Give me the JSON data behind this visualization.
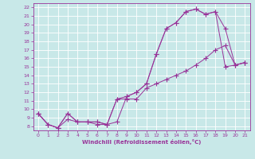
{
  "xlabel": "Windchill (Refroidissement éolien,°C)",
  "xlim": [
    -0.5,
    21.5
  ],
  "ylim": [
    7.5,
    22.5
  ],
  "xticks": [
    0,
    1,
    2,
    3,
    4,
    5,
    6,
    7,
    8,
    9,
    10,
    11,
    12,
    13,
    14,
    15,
    16,
    17,
    18,
    19,
    20,
    21
  ],
  "yticks": [
    8,
    9,
    10,
    11,
    12,
    13,
    14,
    15,
    16,
    17,
    18,
    19,
    20,
    21,
    22
  ],
  "bg_color": "#c8e8e8",
  "line_color": "#993399",
  "grid_color": "#aacccc",
  "line1_x": [
    0,
    1,
    2,
    3,
    4,
    5,
    6,
    7,
    8,
    9,
    10,
    11,
    12,
    13,
    14,
    15,
    16,
    17,
    18,
    19,
    20,
    21
  ],
  "line1_y": [
    9.5,
    8.2,
    7.8,
    8.8,
    8.5,
    8.5,
    8.2,
    8.2,
    8.5,
    11.5,
    12.0,
    13.0,
    16.5,
    19.5,
    20.2,
    21.5,
    21.8,
    21.2,
    21.5,
    19.5,
    15.2,
    15.5
  ],
  "line2_x": [
    0,
    1,
    2,
    3,
    4,
    5,
    6,
    7,
    8,
    9,
    10,
    11,
    12,
    13,
    14,
    15,
    16,
    17,
    18,
    19,
    20,
    21
  ],
  "line2_y": [
    9.5,
    8.2,
    7.8,
    9.5,
    8.5,
    8.5,
    8.5,
    8.2,
    11.2,
    11.2,
    11.2,
    12.5,
    13.0,
    13.5,
    14.0,
    14.5,
    15.2,
    16.0,
    17.0,
    17.5,
    15.2,
    15.5
  ],
  "line3_x": [
    0,
    1,
    2,
    3,
    4,
    5,
    6,
    7,
    8,
    9,
    10,
    11,
    12,
    13,
    14,
    15,
    16,
    17,
    18,
    19,
    20,
    21
  ],
  "line3_y": [
    9.5,
    8.2,
    7.8,
    9.5,
    8.5,
    8.5,
    8.5,
    8.2,
    11.2,
    11.5,
    12.0,
    13.0,
    16.5,
    19.5,
    20.2,
    21.5,
    21.8,
    21.2,
    21.5,
    15.0,
    15.2,
    15.5
  ]
}
